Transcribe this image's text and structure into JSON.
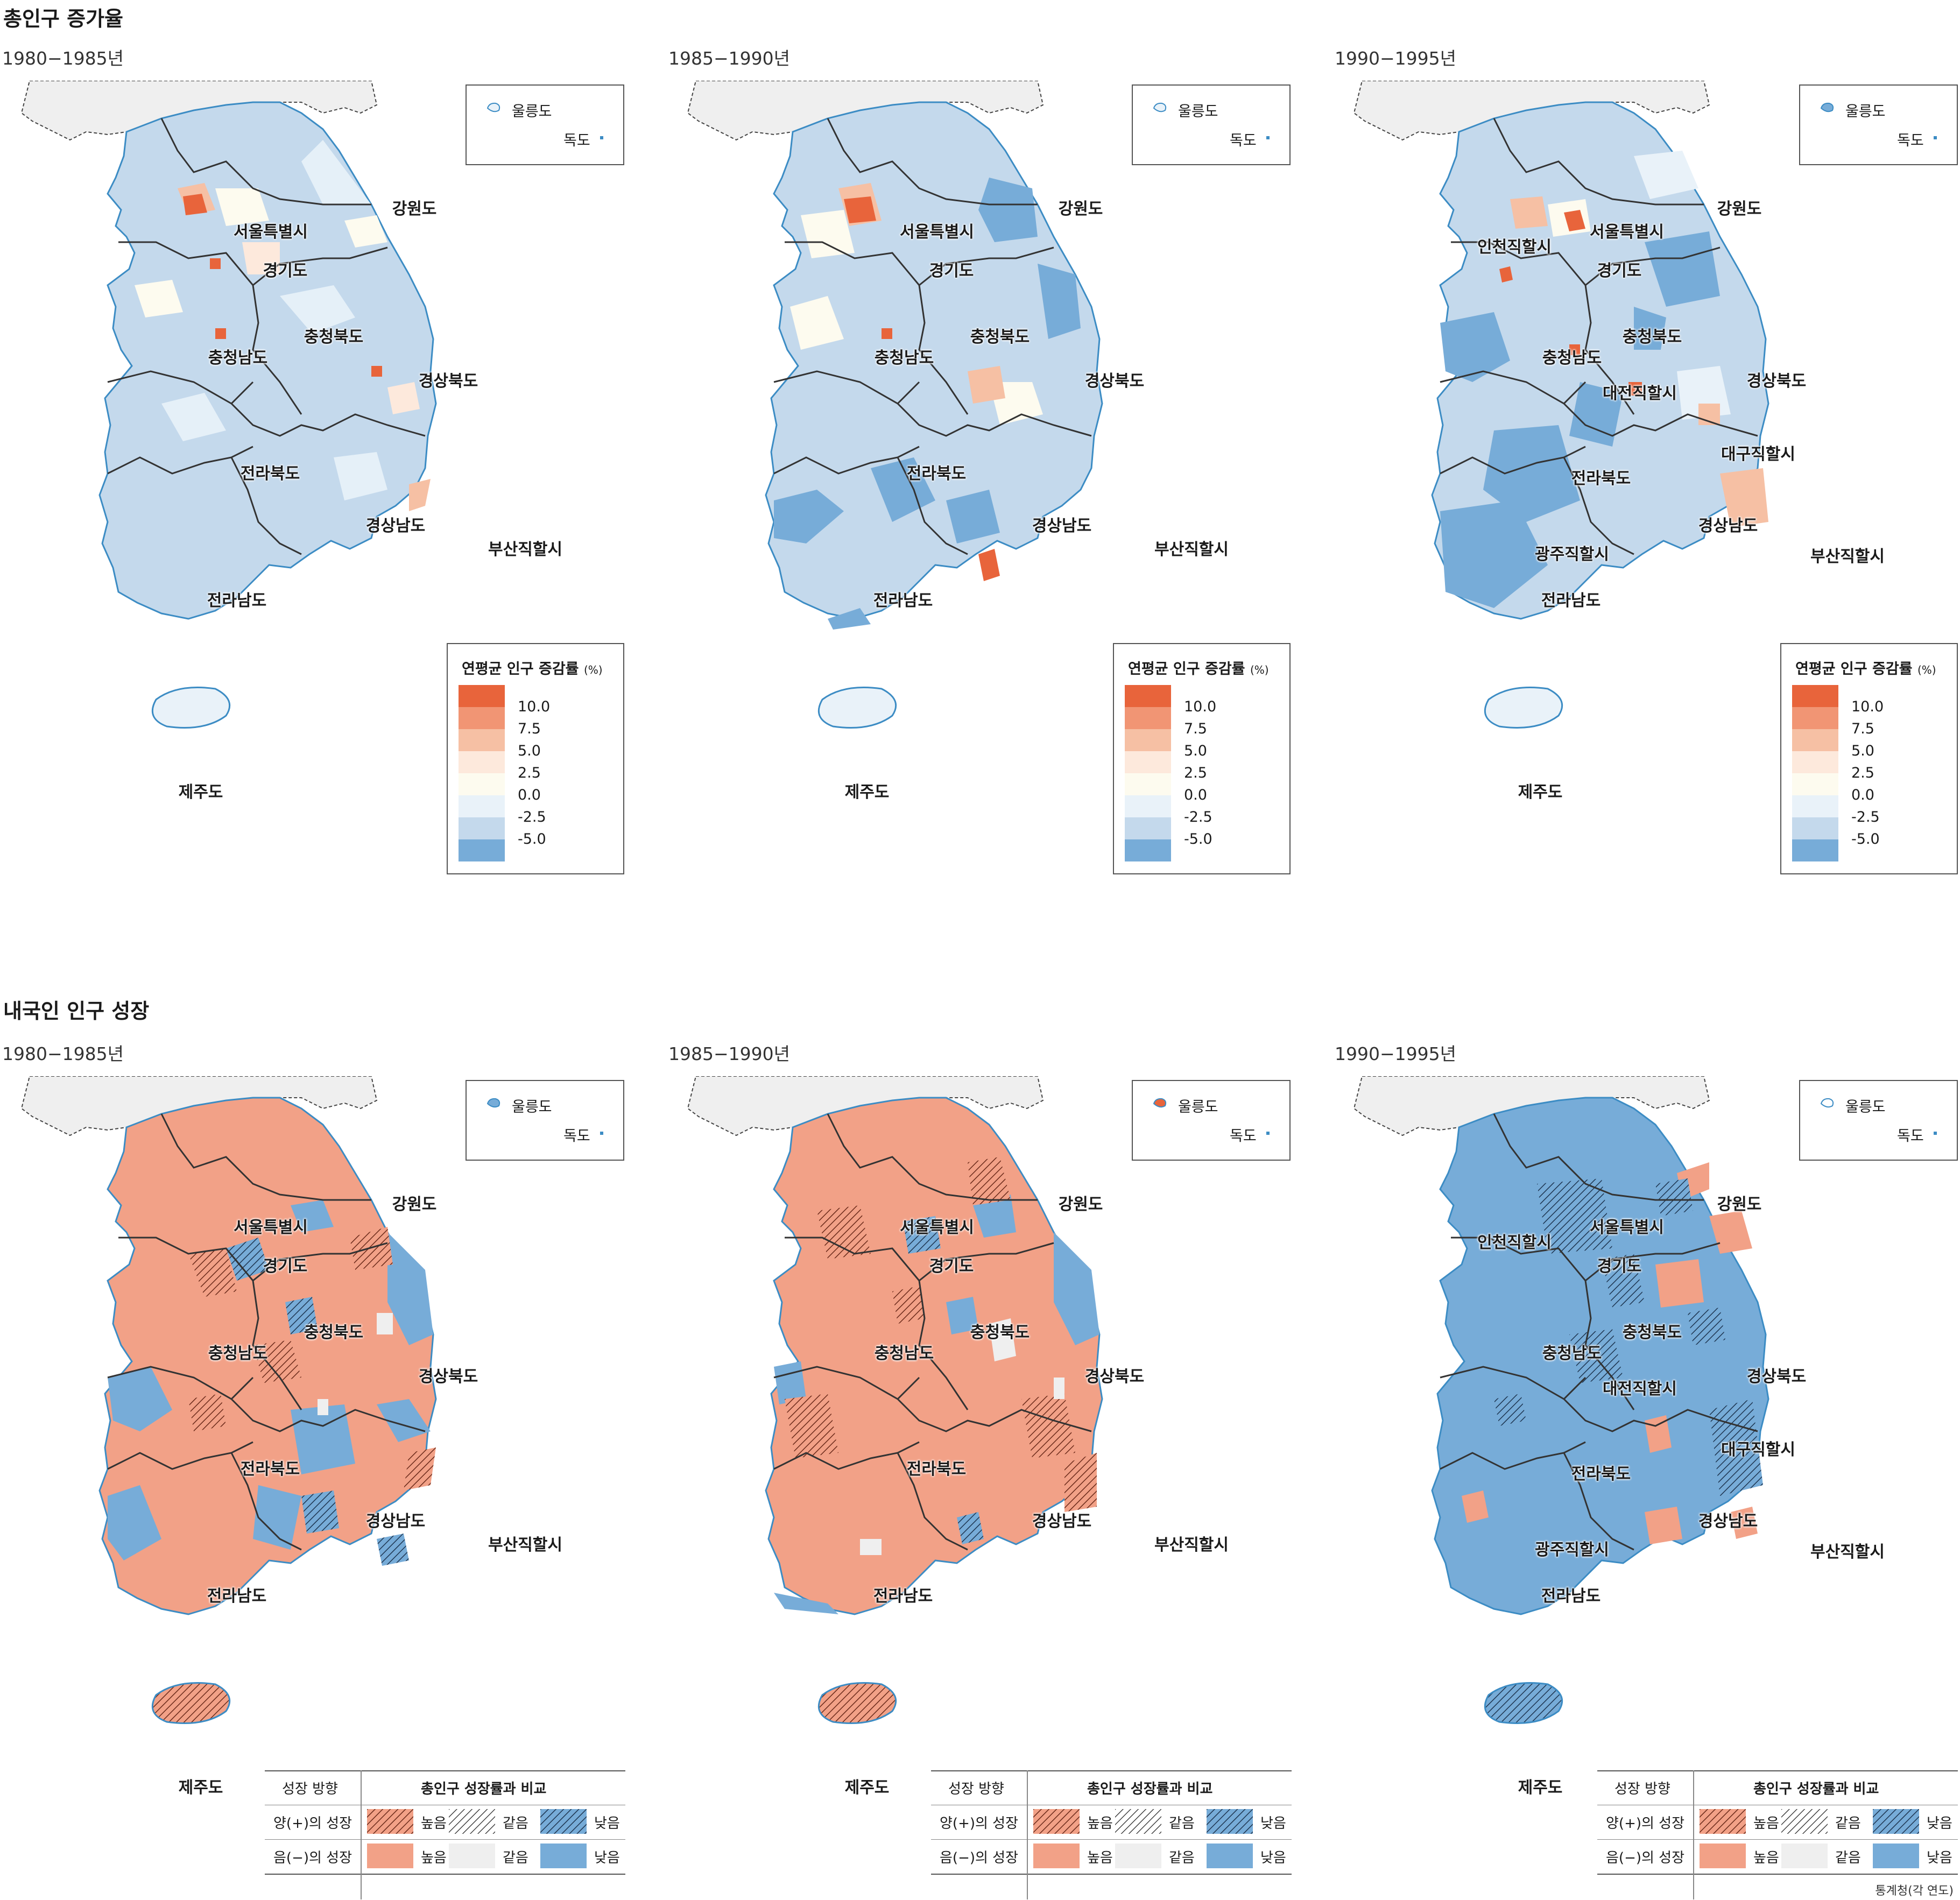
{
  "section1": {
    "title": "총인구 증가율"
  },
  "section2": {
    "title": "내국인 인구 성장"
  },
  "periods": [
    "1980−1985년",
    "1985−1990년",
    "1990−1995년"
  ],
  "inset": {
    "ulleung": "울릉도",
    "dokdo": "독도"
  },
  "regions": {
    "gangwon": "강원도",
    "seoul": "서울특별시",
    "gyeonggi": "경기도",
    "chungbuk": "충청북도",
    "chungnam": "충청남도",
    "gyeongbuk": "경상북도",
    "jeonbuk": "전라북도",
    "gyeongnam": "경상남도",
    "busan": "부산직할시",
    "jeonnam": "전라남도",
    "jeju": "제주도",
    "incheon": "인천직할시",
    "daejeon": "대전직할시",
    "daegu": "대구직할시",
    "gwangju": "광주직할시"
  },
  "legend1": {
    "title": "연평균 인구 증감률",
    "unit": "(%)",
    "ticks": [
      "10.0",
      "7.5",
      "5.0",
      "2.5",
      "0.0",
      "-2.5",
      "-5.0"
    ],
    "colors": [
      "#e8643b",
      "#f19574",
      "#f6c0a4",
      "#fde9dc",
      "#fdfbef",
      "#e9f2f9",
      "#c4d9ec",
      "#77acd8"
    ]
  },
  "legend2": {
    "header_direction": "성장 방향",
    "header_compare": "총인구 성장률과 비교",
    "row_positive": "양(+)의 성장",
    "row_negative": "음(−)의 성장",
    "higher": "높음",
    "same": "같음",
    "lower": "낮음",
    "colors": {
      "salmon": "#f2a187",
      "gray": "#efefef",
      "blue": "#77acd8",
      "navy": "#234a6b"
    }
  },
  "source": "통계청(각 연도)"
}
